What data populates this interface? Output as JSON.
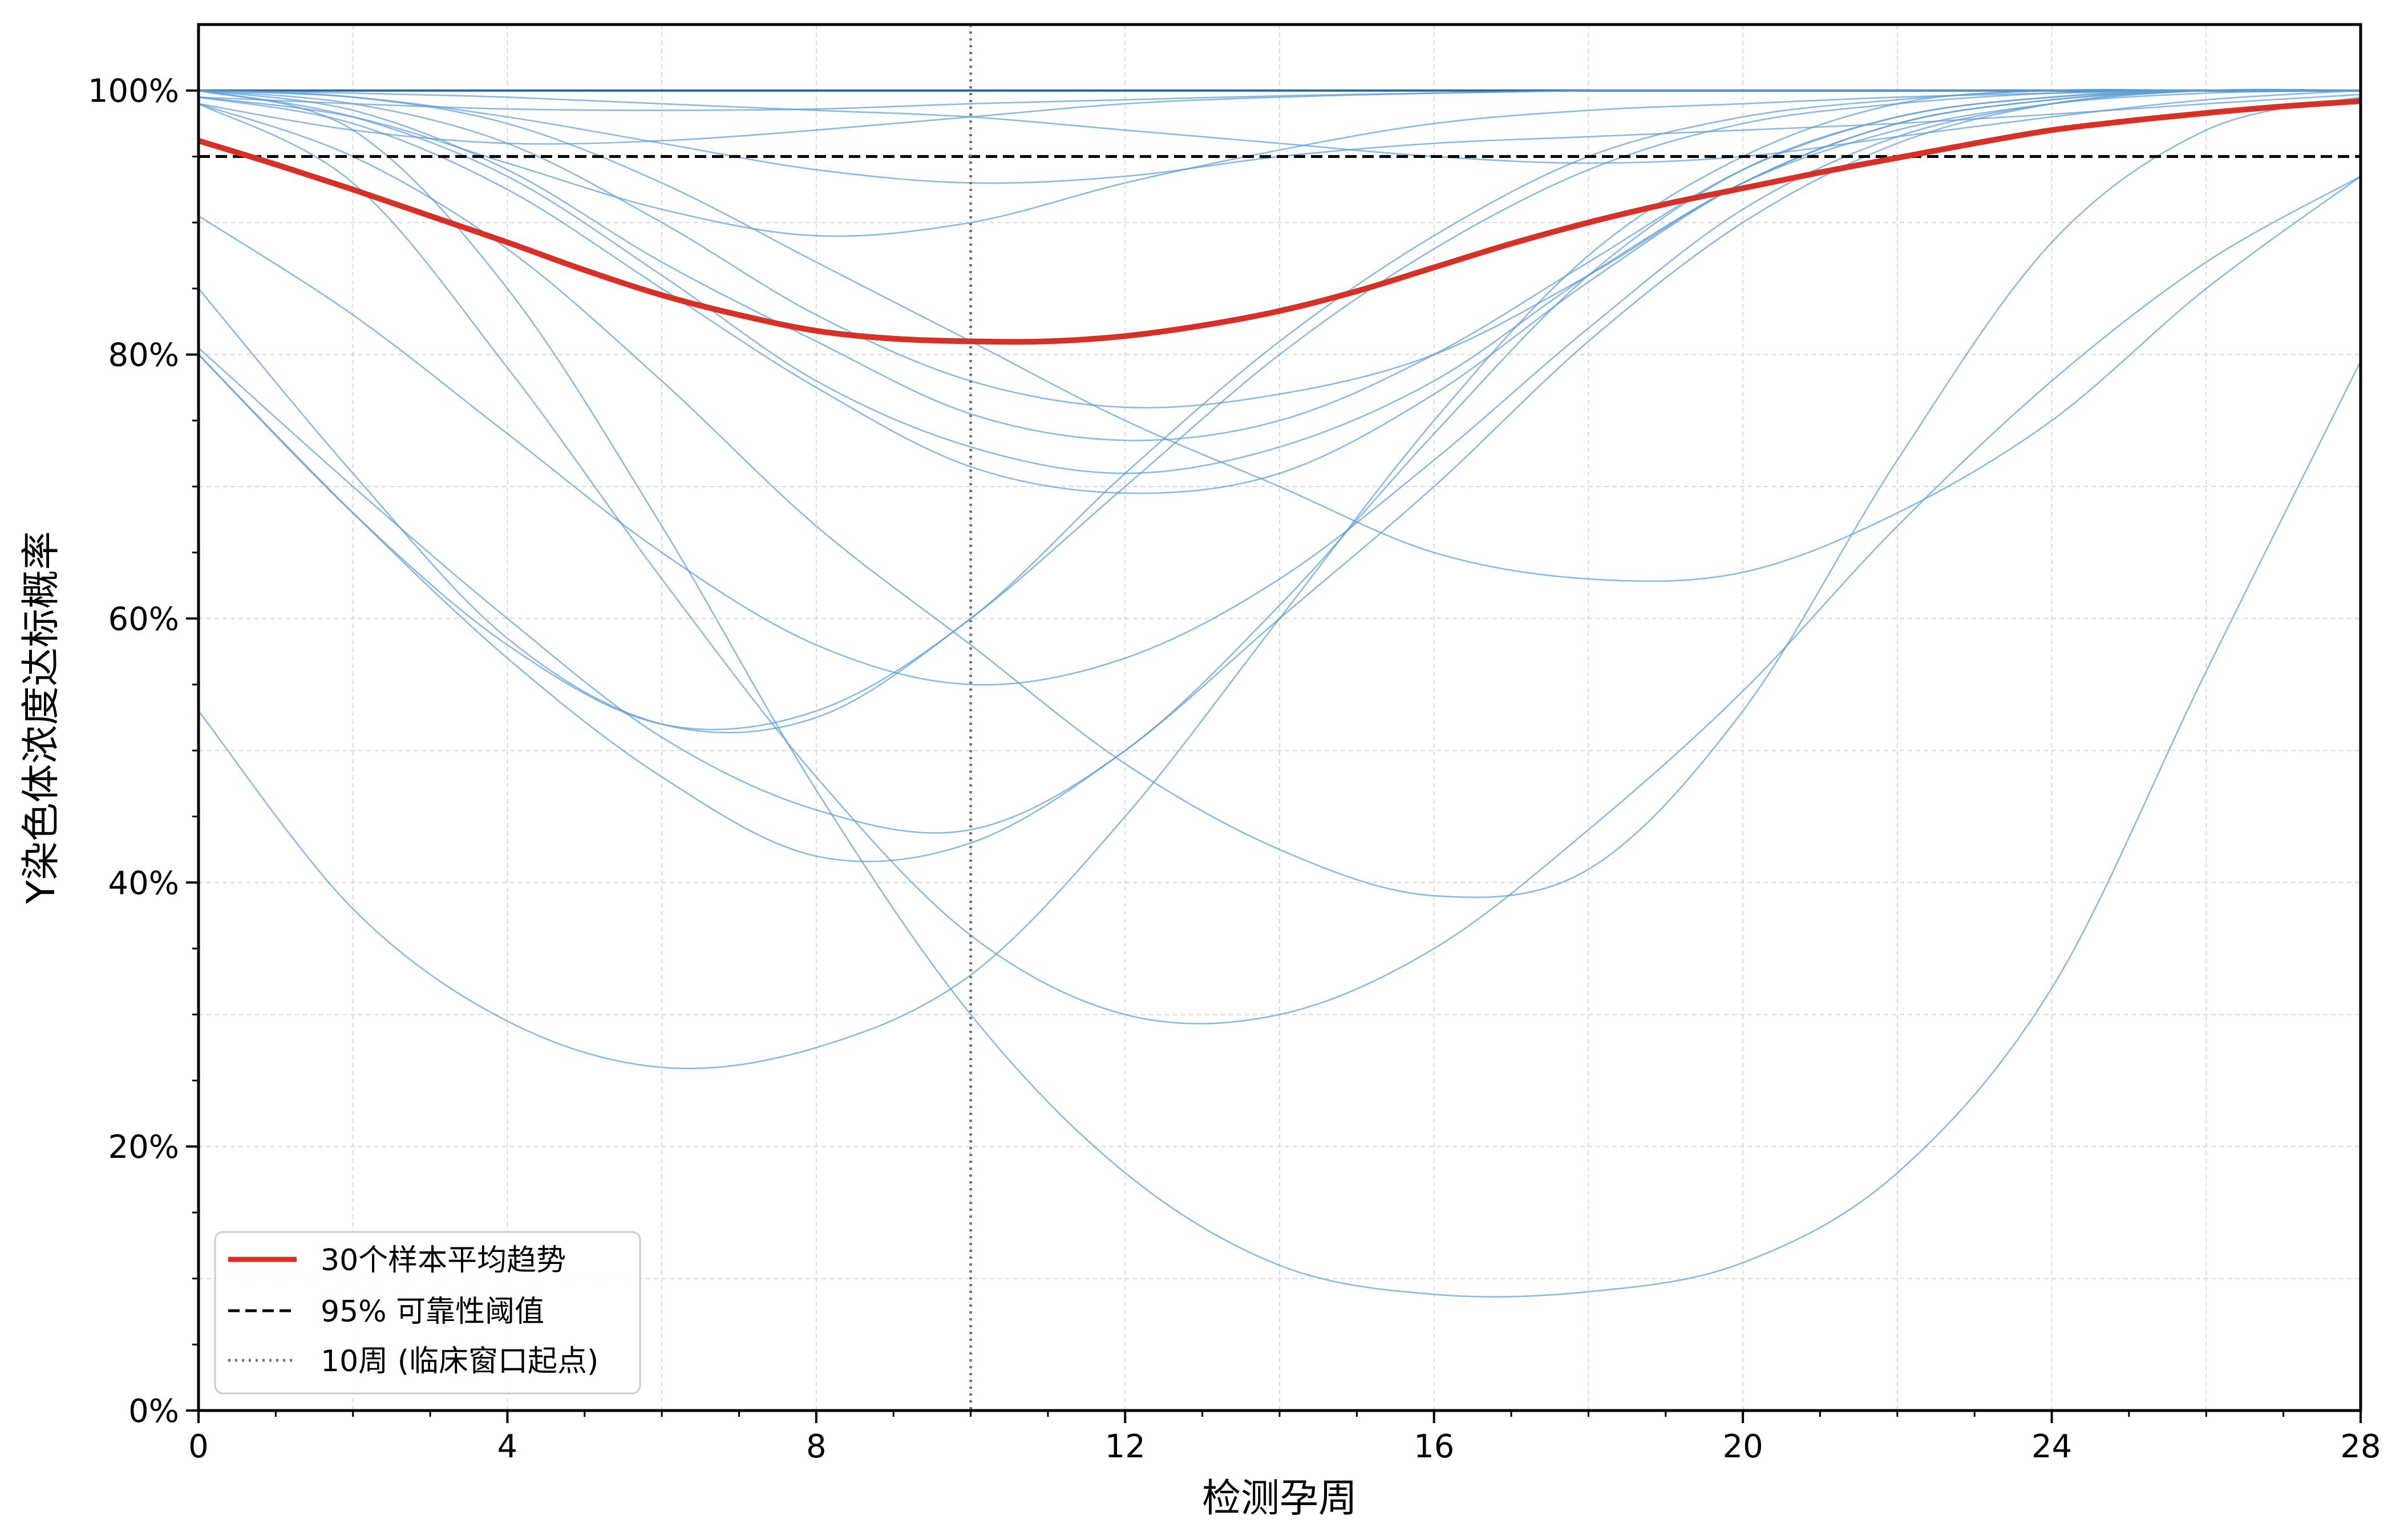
{
  "chart_data": {
    "type": "line",
    "xlabel": "检测孕周",
    "ylabel": "Y染色体浓度达标概率",
    "xlim": [
      0,
      28
    ],
    "ylim": [
      0,
      1.05
    ],
    "x_ticks": [
      0,
      4,
      8,
      12,
      16,
      20,
      24,
      28
    ],
    "y_ticks": [
      0,
      0.2,
      0.4,
      0.6,
      0.8,
      1.0
    ],
    "y_tick_labels": [
      "0%",
      "20%",
      "40%",
      "60%",
      "80%",
      "100%"
    ],
    "grid": true,
    "legend_position": "bottom-left",
    "legend": {
      "mean_label": "30个样本平均趋势",
      "threshold_label": "95% 可靠性阈值",
      "vline_label": "10周 (临床窗口起点)"
    },
    "threshold_y": 0.95,
    "vline_x": 10,
    "colors": {
      "sample": "#5b9bd5",
      "sample_dark": "#1f5fa0",
      "mean": "#d63027",
      "threshold": "#000000",
      "vline": "#777777"
    },
    "mean_series": {
      "x": [
        0,
        1,
        2,
        3,
        4,
        5,
        6,
        7,
        8,
        9,
        10,
        11,
        12,
        13,
        14,
        15,
        16,
        17,
        18,
        19,
        20,
        21,
        22,
        23,
        24,
        25,
        26,
        27,
        28
      ],
      "y": [
        0.962,
        0.944,
        0.925,
        0.905,
        0.885,
        0.864,
        0.845,
        0.83,
        0.818,
        0.812,
        0.81,
        0.81,
        0.814,
        0.822,
        0.833,
        0.848,
        0.866,
        0.884,
        0.9,
        0.914,
        0.926,
        0.938,
        0.949,
        0.96,
        0.97,
        0.977,
        0.983,
        0.988,
        0.992
      ]
    },
    "sample_series": [
      {
        "x": [
          0,
          2,
          4,
          6,
          8,
          10,
          12,
          14,
          16,
          18,
          20,
          22,
          24,
          26,
          28
        ],
        "y": [
          1.0,
          1.0,
          1.0,
          1.0,
          1.0,
          1.0,
          1.0,
          1.0,
          1.0,
          1.0,
          1.0,
          1.0,
          1.0,
          1.0,
          1.0
        ]
      },
      {
        "x": [
          0,
          2,
          4,
          6,
          8,
          10,
          12,
          14,
          16,
          18,
          20,
          22,
          24,
          26,
          28
        ],
        "y": [
          0.995,
          0.99,
          0.986,
          0.985,
          0.986,
          0.99,
          0.993,
          0.996,
          0.998,
          1.0,
          1.0,
          1.0,
          1.0,
          1.0,
          1.0
        ]
      },
      {
        "x": [
          0,
          2,
          4,
          6,
          8,
          10,
          12,
          14,
          16,
          18,
          20,
          22,
          24,
          26,
          28
        ],
        "y": [
          0.99,
          0.97,
          0.96,
          0.962,
          0.97,
          0.98,
          0.99,
          0.995,
          0.998,
          1.0,
          1.0,
          1.0,
          1.0,
          1.0,
          1.0
        ]
      },
      {
        "x": [
          0,
          2,
          4,
          6,
          8,
          10,
          12,
          14,
          16,
          18,
          20,
          22,
          24,
          26,
          28
        ],
        "y": [
          1.0,
          0.998,
          0.995,
          0.99,
          0.985,
          0.98,
          0.97,
          0.96,
          0.95,
          0.945,
          0.95,
          0.965,
          0.98,
          0.993,
          1.0
        ]
      },
      {
        "x": [
          0,
          2,
          4,
          6,
          8,
          10,
          12,
          14,
          16,
          18,
          20,
          22,
          24,
          26,
          28
        ],
        "y": [
          1.0,
          0.995,
          0.98,
          0.96,
          0.94,
          0.93,
          0.935,
          0.95,
          0.96,
          0.965,
          0.97,
          0.975,
          0.982,
          0.99,
          0.997
        ]
      },
      {
        "x": [
          0,
          2,
          4,
          6,
          8,
          10,
          12,
          14,
          16,
          18,
          20,
          22,
          24,
          26,
          28
        ],
        "y": [
          0.995,
          0.98,
          0.945,
          0.91,
          0.89,
          0.9,
          0.93,
          0.955,
          0.975,
          0.985,
          0.99,
          0.995,
          0.998,
          1.0,
          1.0
        ]
      },
      {
        "x": [
          0,
          2,
          4,
          6,
          8,
          10,
          12,
          14,
          16,
          18,
          20,
          22,
          24,
          26,
          28
        ],
        "y": [
          1.0,
          0.99,
          0.96,
          0.9,
          0.83,
          0.78,
          0.76,
          0.77,
          0.8,
          0.86,
          0.93,
          0.97,
          0.99,
          0.998,
          1.0
        ]
      },
      {
        "x": [
          0,
          2,
          4,
          6,
          8,
          10,
          12,
          14,
          16,
          18,
          20,
          22,
          24,
          26,
          28
        ],
        "y": [
          1.0,
          0.985,
          0.94,
          0.87,
          0.81,
          0.755,
          0.735,
          0.75,
          0.8,
          0.87,
          0.94,
          0.98,
          0.995,
          1.0,
          1.0
        ]
      },
      {
        "x": [
          0,
          2,
          4,
          6,
          8,
          10,
          12,
          14,
          16,
          18,
          20,
          22,
          24,
          26,
          28
        ],
        "y": [
          1.0,
          0.98,
          0.935,
          0.86,
          0.78,
          0.73,
          0.71,
          0.73,
          0.78,
          0.86,
          0.93,
          0.975,
          0.993,
          1.0,
          1.0
        ]
      },
      {
        "x": [
          0,
          2,
          4,
          6,
          8,
          10,
          12,
          14,
          16,
          18,
          20,
          22,
          24,
          26,
          28
        ],
        "y": [
          0.995,
          0.975,
          0.925,
          0.85,
          0.775,
          0.715,
          0.695,
          0.71,
          0.77,
          0.855,
          0.93,
          0.975,
          0.993,
          1.0,
          1.0
        ]
      },
      {
        "x": [
          0,
          2,
          4,
          6,
          8,
          10,
          12,
          14,
          16,
          18,
          20,
          22,
          24,
          26,
          28
        ],
        "y": [
          1.0,
          0.995,
          0.975,
          0.93,
          0.87,
          0.81,
          0.75,
          0.7,
          0.65,
          0.63,
          0.635,
          0.68,
          0.75,
          0.85,
          0.935
        ]
      },
      {
        "x": [
          0,
          2,
          4,
          6,
          8,
          10,
          12,
          14,
          16,
          18,
          20,
          22,
          24,
          26,
          28
        ],
        "y": [
          0.99,
          0.95,
          0.88,
          0.78,
          0.67,
          0.58,
          0.49,
          0.425,
          0.39,
          0.41,
          0.53,
          0.72,
          0.885,
          0.97,
          0.995
        ]
      },
      {
        "x": [
          0,
          2,
          4,
          6,
          8,
          10,
          12,
          14,
          16,
          18,
          20,
          22,
          24,
          26,
          28
        ],
        "y": [
          0.905,
          0.83,
          0.74,
          0.65,
          0.58,
          0.55,
          0.57,
          0.63,
          0.72,
          0.82,
          0.91,
          0.965,
          0.99,
          1.0,
          1.0
        ]
      },
      {
        "x": [
          0,
          2,
          4,
          6,
          8,
          10,
          12,
          14,
          16,
          18,
          20,
          22,
          24,
          26,
          28
        ],
        "y": [
          0.85,
          0.71,
          0.585,
          0.52,
          0.525,
          0.6,
          0.7,
          0.8,
          0.88,
          0.94,
          0.975,
          0.99,
          0.998,
          1.0,
          1.0
        ]
      },
      {
        "x": [
          0,
          2,
          4,
          6,
          8,
          10,
          12,
          14,
          16,
          18,
          20,
          22,
          24,
          26,
          28
        ],
        "y": [
          0.8,
          0.68,
          0.58,
          0.52,
          0.53,
          0.6,
          0.71,
          0.81,
          0.89,
          0.95,
          0.98,
          0.993,
          1.0,
          1.0,
          1.0
        ]
      },
      {
        "x": [
          0,
          2,
          4,
          6,
          8,
          10,
          12,
          14,
          16,
          18,
          20,
          22,
          24,
          26,
          28
        ],
        "y": [
          0.805,
          0.7,
          0.6,
          0.51,
          0.455,
          0.44,
          0.5,
          0.61,
          0.74,
          0.86,
          0.94,
          0.98,
          0.995,
          1.0,
          1.0
        ]
      },
      {
        "x": [
          0,
          2,
          4,
          6,
          8,
          10,
          12,
          14,
          16,
          18,
          20,
          22,
          24,
          26,
          28
        ],
        "y": [
          0.8,
          0.68,
          0.57,
          0.48,
          0.42,
          0.43,
          0.5,
          0.6,
          0.7,
          0.81,
          0.9,
          0.96,
          0.99,
          1.0,
          1.0
        ]
      },
      {
        "x": [
          0,
          2,
          4,
          6,
          8,
          10,
          12,
          14,
          16,
          18,
          20,
          22,
          24,
          26,
          28
        ],
        "y": [
          0.99,
          0.93,
          0.79,
          0.63,
          0.48,
          0.36,
          0.3,
          0.3,
          0.35,
          0.44,
          0.545,
          0.67,
          0.78,
          0.87,
          0.935
        ]
      },
      {
        "x": [
          0,
          2,
          4,
          6,
          8,
          10,
          12,
          14,
          16,
          18,
          20,
          22,
          24,
          26,
          28
        ],
        "y": [
          1.0,
          0.97,
          0.85,
          0.67,
          0.47,
          0.3,
          0.18,
          0.11,
          0.088,
          0.09,
          0.112,
          0.18,
          0.32,
          0.56,
          0.795
        ]
      },
      {
        "x": [
          0,
          2,
          4,
          6,
          8,
          10,
          12,
          14,
          16,
          18,
          20,
          22,
          24,
          26,
          28
        ],
        "y": [
          0.53,
          0.38,
          0.295,
          0.26,
          0.275,
          0.33,
          0.45,
          0.6,
          0.75,
          0.875,
          0.95,
          0.99,
          1.0,
          1.0,
          1.0
        ]
      }
    ]
  }
}
